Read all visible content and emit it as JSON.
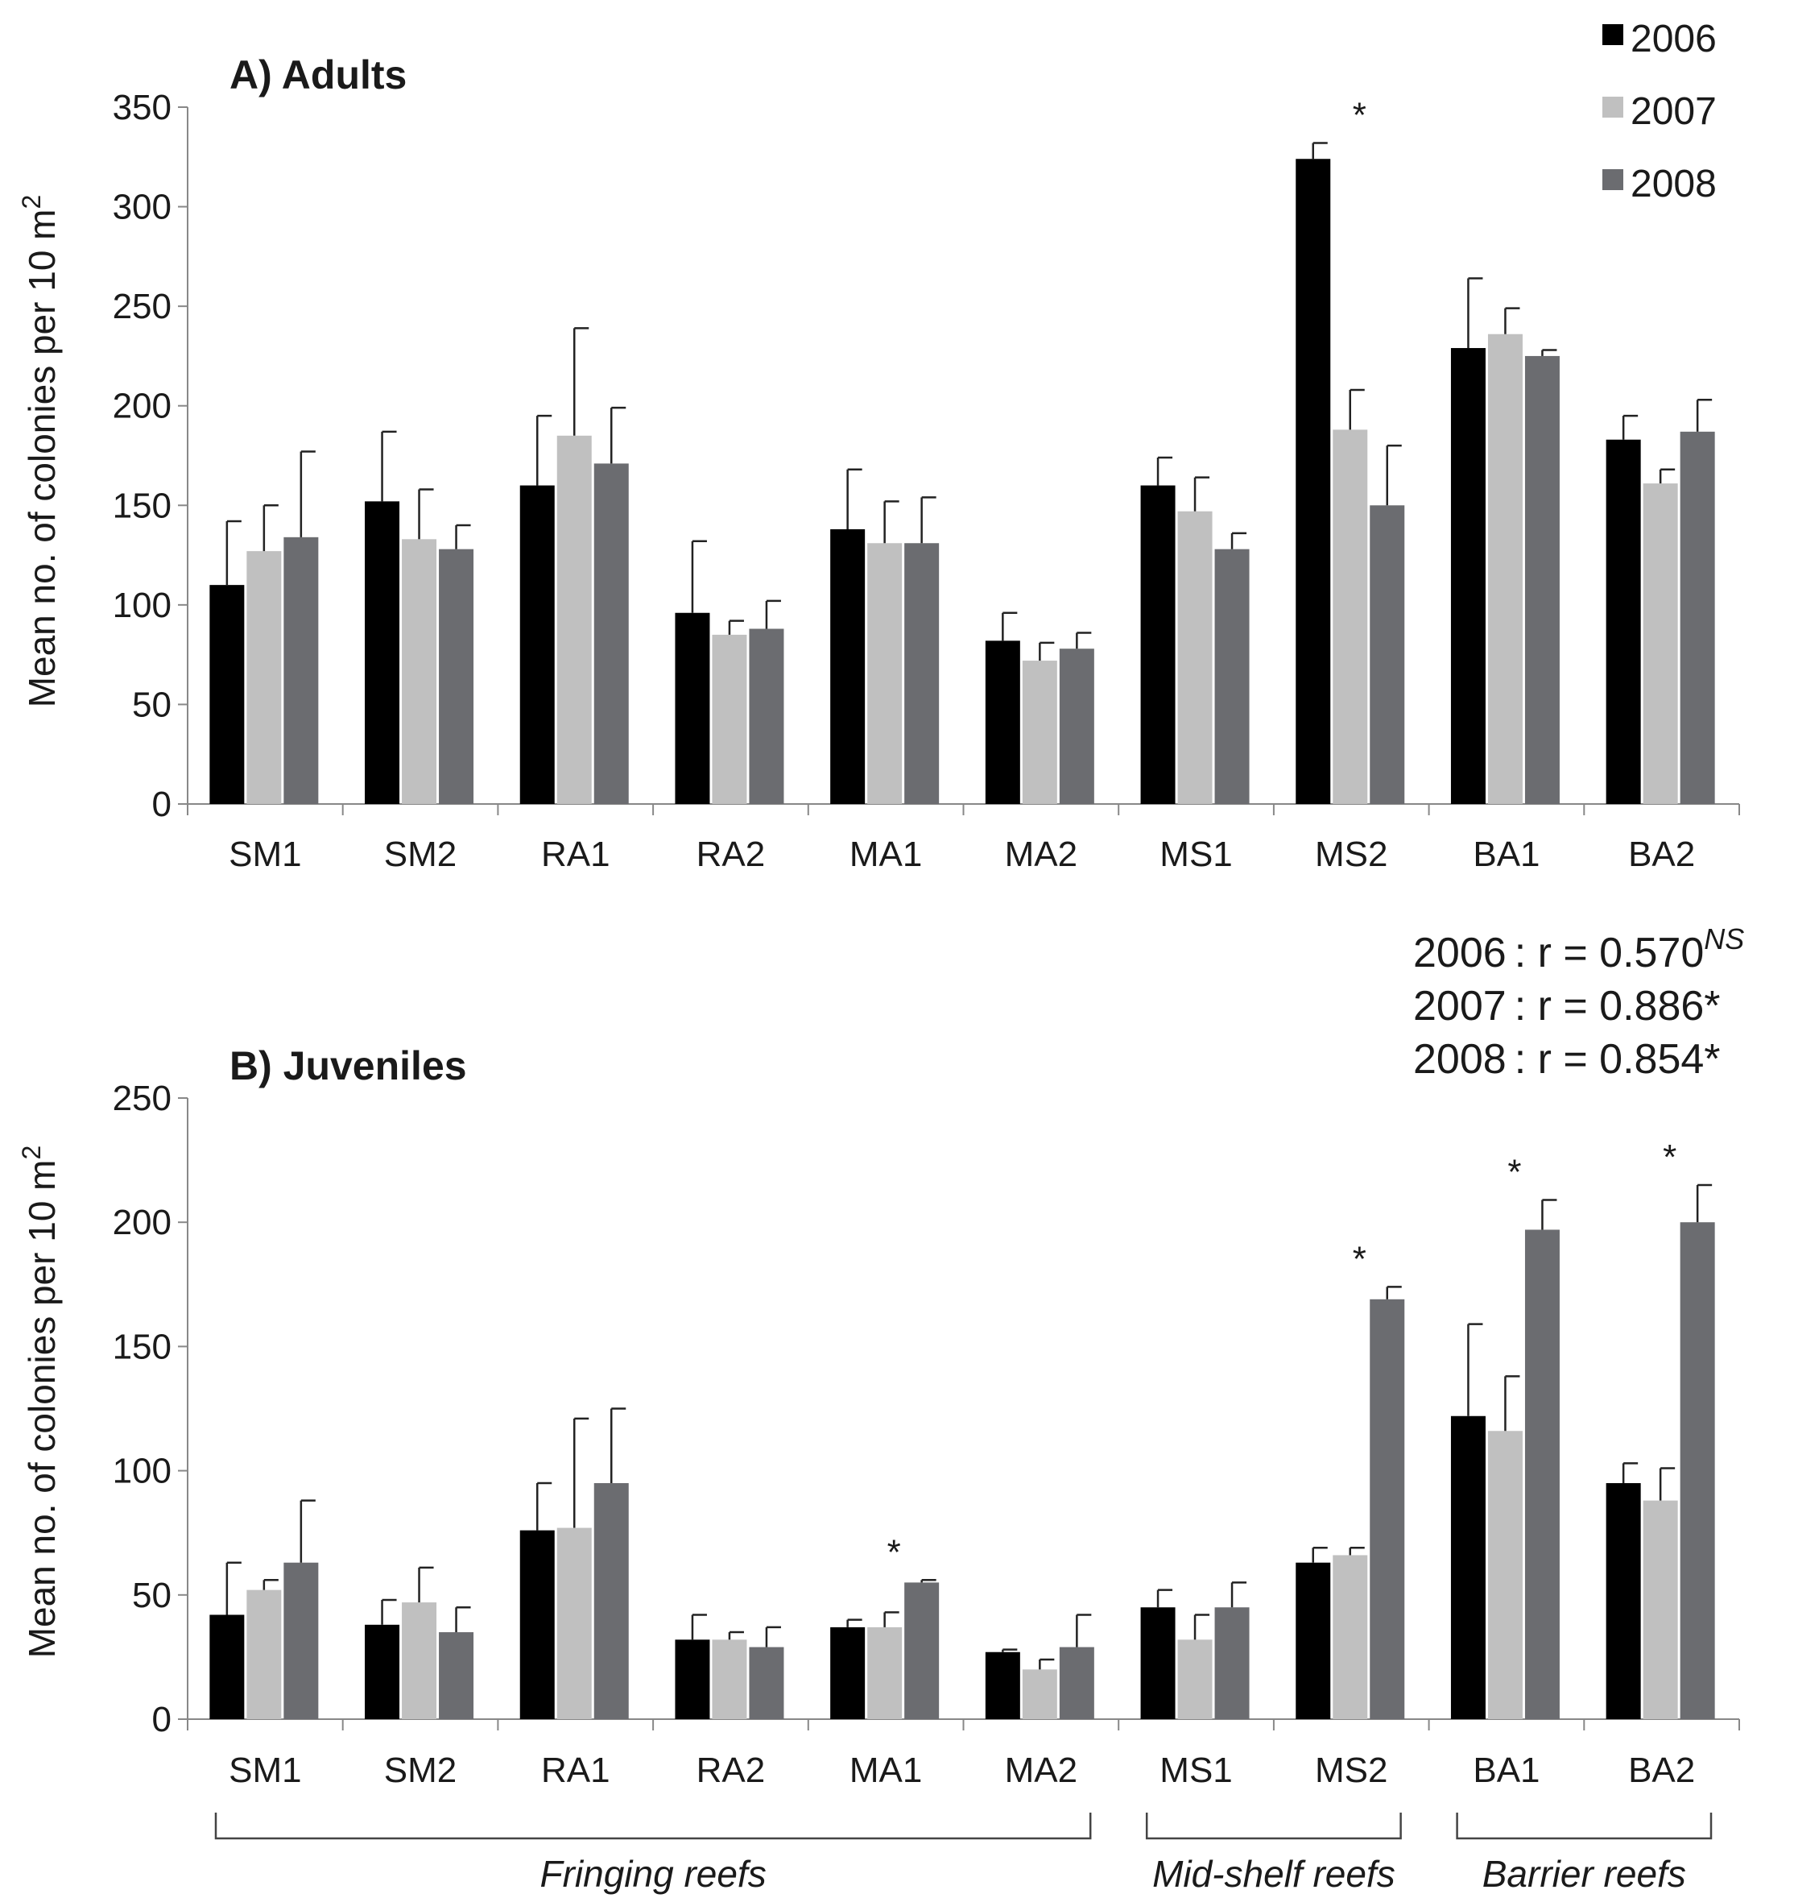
{
  "legend": {
    "entries": [
      {
        "label": "2006",
        "color": "#000000"
      },
      {
        "label": "2007",
        "color": "#c0c0c0"
      },
      {
        "label": "2008",
        "color": "#6b6c70"
      }
    ]
  },
  "correlations": [
    {
      "year": "2006",
      "text": ": r = 0.570",
      "sup": "NS"
    },
    {
      "year": "2007",
      "text": ": r = 0.886*",
      "sup": ""
    },
    {
      "year": "2008",
      "text": ": r = 0.854*",
      "sup": ""
    }
  ],
  "groups": [
    {
      "label": "Fringing reefs",
      "from": 0,
      "to": 5
    },
    {
      "label": "Mid-shelf reefs",
      "from": 6,
      "to": 7
    },
    {
      "label": "Barrier reefs",
      "from": 8,
      "to": 9
    }
  ],
  "chart_data": [
    {
      "type": "bar",
      "title": "A) Adults",
      "ylabel": "Mean no. of colonies per 10 m",
      "ylabel_sup": "2",
      "xlabel": "",
      "ylim": [
        0,
        350
      ],
      "yticks": [
        0,
        50,
        100,
        150,
        200,
        250,
        300,
        350
      ],
      "categories": [
        "SM1",
        "SM2",
        "RA1",
        "RA2",
        "MA1",
        "MA2",
        "MS1",
        "MS2",
        "BA1",
        "BA2"
      ],
      "series": [
        {
          "name": "2006",
          "values": [
            110,
            152,
            160,
            96,
            138,
            82,
            160,
            324,
            229,
            183
          ],
          "errors": [
            32,
            35,
            35,
            36,
            30,
            14,
            14,
            8,
            35,
            12
          ]
        },
        {
          "name": "2007",
          "values": [
            127,
            133,
            185,
            85,
            131,
            72,
            147,
            188,
            236,
            161
          ],
          "errors": [
            23,
            25,
            54,
            7,
            21,
            9,
            17,
            20,
            13,
            7
          ]
        },
        {
          "name": "2008",
          "values": [
            134,
            128,
            171,
            88,
            131,
            78,
            128,
            150,
            225,
            187
          ],
          "errors": [
            43,
            12,
            28,
            14,
            23,
            8,
            8,
            30,
            3,
            16
          ]
        }
      ],
      "significance": [
        {
          "category": "MS2",
          "label": "*"
        }
      ]
    },
    {
      "type": "bar",
      "title": "B) Juveniles",
      "ylabel": "Mean no. of colonies per 10 m",
      "ylabel_sup": "2",
      "xlabel": "",
      "ylim": [
        0,
        250
      ],
      "yticks": [
        0,
        50,
        100,
        150,
        200,
        250
      ],
      "categories": [
        "SM1",
        "SM2",
        "RA1",
        "RA2",
        "MA1",
        "MA2",
        "MS1",
        "MS2",
        "BA1",
        "BA2"
      ],
      "series": [
        {
          "name": "2006",
          "values": [
            42,
            38,
            76,
            32,
            37,
            27,
            45,
            63,
            122,
            95
          ],
          "errors": [
            21,
            10,
            19,
            10,
            3,
            1,
            7,
            6,
            37,
            8
          ]
        },
        {
          "name": "2007",
          "values": [
            52,
            47,
            77,
            32,
            37,
            20,
            32,
            66,
            116,
            88
          ],
          "errors": [
            4,
            14,
            44,
            3,
            6,
            4,
            10,
            3,
            22,
            13
          ]
        },
        {
          "name": "2008",
          "values": [
            63,
            35,
            95,
            29,
            55,
            29,
            45,
            169,
            197,
            200
          ],
          "errors": [
            25,
            10,
            30,
            8,
            1,
            13,
            10,
            5,
            12,
            15
          ]
        }
      ],
      "significance": [
        {
          "category": "MA1",
          "label": "*"
        },
        {
          "category": "MS2",
          "label": "*"
        },
        {
          "category": "BA1",
          "label": "*"
        },
        {
          "category": "BA2",
          "label": "*"
        }
      ]
    }
  ]
}
